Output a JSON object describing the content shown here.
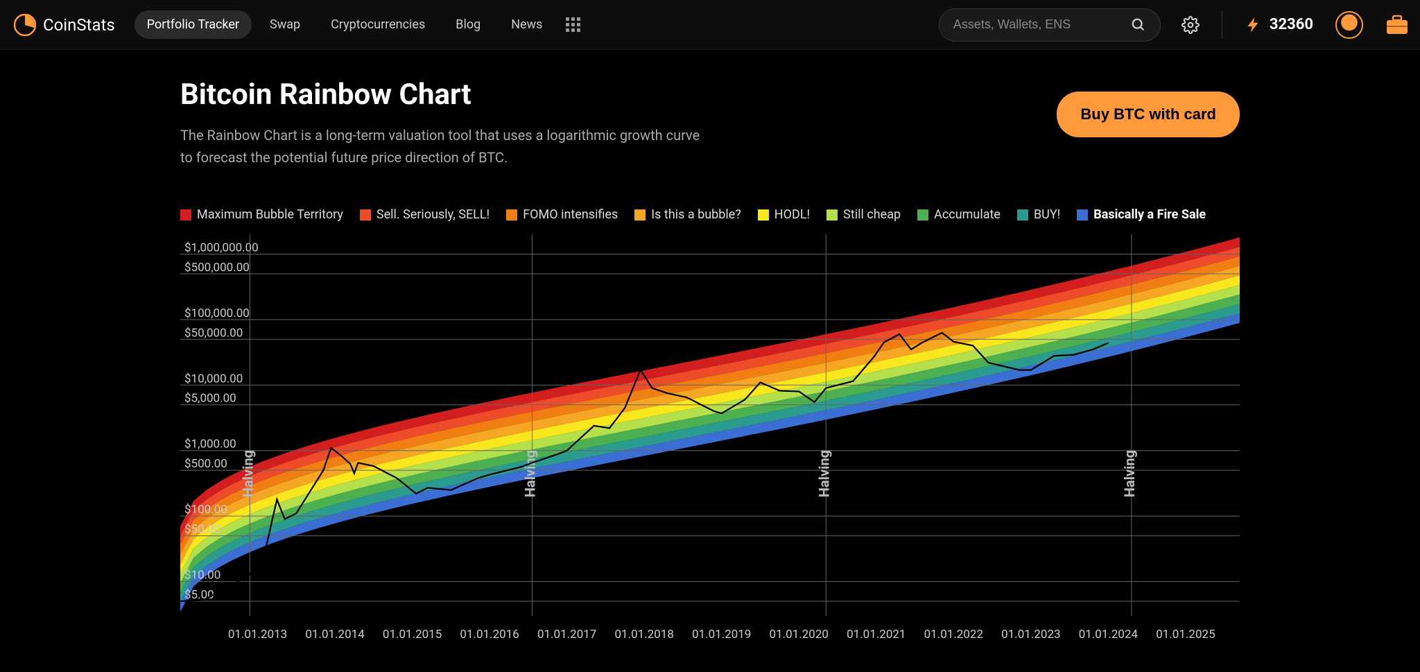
{
  "header": {
    "brand": "CoinStats",
    "nav": [
      "Portfolio Tracker",
      "Swap",
      "Cryptocurrencies",
      "Blog",
      "News"
    ],
    "active_nav_index": 0,
    "search_placeholder": "Assets, Wallets, ENS",
    "points": "32360"
  },
  "page": {
    "title": "Bitcoin Rainbow Chart",
    "subtitle": "The Rainbow Chart is a long-term valuation tool that uses a logarithmic growth curve to forecast the potential future price direction of BTC.",
    "buy_button": "Buy BTC with card"
  },
  "chart": {
    "type": "rainbow-log-chart",
    "background_color": "#000000",
    "grid_color": "#666666",
    "text_color": "#cccccc",
    "price_line_color": "#000000",
    "legend": [
      {
        "label": "Maximum Bubble Territory",
        "color": "#d21e1e"
      },
      {
        "label": "Sell. Seriously, SELL!",
        "color": "#ee4b2b"
      },
      {
        "label": "FOMO intensifies",
        "color": "#f07e13"
      },
      {
        "label": "Is this a bubble?",
        "color": "#f5a623"
      },
      {
        "label": "HODL!",
        "color": "#f8e71c"
      },
      {
        "label": "Still cheap",
        "color": "#b4e04b"
      },
      {
        "label": "Accumulate",
        "color": "#4caf50"
      },
      {
        "label": "BUY!",
        "color": "#2b9a8f"
      },
      {
        "label": "Basically a Fire Sale",
        "color": "#3b6fd4"
      }
    ],
    "y_ticks": [
      {
        "value": 1000000,
        "label": "$1,000,000.00"
      },
      {
        "value": 500000,
        "label": "$500,000.00"
      },
      {
        "value": 100000,
        "label": "$100,000.00"
      },
      {
        "value": 50000,
        "label": "$50,000.00"
      },
      {
        "value": 10000,
        "label": "$10,000.00"
      },
      {
        "value": 5000,
        "label": "$5,000.00"
      },
      {
        "value": 1000,
        "label": "$1,000.00"
      },
      {
        "value": 500,
        "label": "$500.00"
      },
      {
        "value": 100,
        "label": "$100.00"
      },
      {
        "value": 50,
        "label": "$50.00"
      },
      {
        "value": 10,
        "label": "$10.00"
      },
      {
        "value": 5,
        "label": "$5.00"
      }
    ],
    "y_log_min": 3,
    "y_log_max": 2000000,
    "x_ticks": [
      "01.01.2013",
      "01.01.2014",
      "01.01.2015",
      "01.01.2016",
      "01.01.2017",
      "01.01.2018",
      "01.01.2019",
      "01.01.2020",
      "01.01.2021",
      "01.01.2022",
      "01.01.2023",
      "01.01.2024",
      "01.01.2025"
    ],
    "x_min_year": 2012.0,
    "x_max_year": 2025.7,
    "halvings": [
      {
        "year": 2012.9,
        "label": "Halving"
      },
      {
        "year": 2016.55,
        "label": "Halving"
      },
      {
        "year": 2020.35,
        "label": "Halving"
      },
      {
        "year": 2024.3,
        "label": "Halving"
      }
    ],
    "rainbow_top_band": {
      "start_year": 2012.0,
      "start_value": 70,
      "end_year": 2025.7,
      "end_value": 1800000,
      "curvature": 0.45
    },
    "band_thickness_log": 0.145,
    "price_series": [
      {
        "year": 2012.0,
        "price": 5
      },
      {
        "year": 2012.3,
        "price": 5.2
      },
      {
        "year": 2012.6,
        "price": 8
      },
      {
        "year": 2012.9,
        "price": 13
      },
      {
        "year": 2013.1,
        "price": 30
      },
      {
        "year": 2013.25,
        "price": 180
      },
      {
        "year": 2013.35,
        "price": 90
      },
      {
        "year": 2013.5,
        "price": 110
      },
      {
        "year": 2013.85,
        "price": 500
      },
      {
        "year": 2013.95,
        "price": 1100
      },
      {
        "year": 2014.1,
        "price": 800
      },
      {
        "year": 2014.2,
        "price": 620
      },
      {
        "year": 2014.25,
        "price": 450
      },
      {
        "year": 2014.3,
        "price": 650
      },
      {
        "year": 2014.5,
        "price": 580
      },
      {
        "year": 2014.8,
        "price": 380
      },
      {
        "year": 2015.05,
        "price": 220
      },
      {
        "year": 2015.2,
        "price": 270
      },
      {
        "year": 2015.5,
        "price": 250
      },
      {
        "year": 2015.85,
        "price": 380
      },
      {
        "year": 2016.0,
        "price": 430
      },
      {
        "year": 2016.4,
        "price": 560
      },
      {
        "year": 2016.55,
        "price": 650
      },
      {
        "year": 2016.9,
        "price": 900
      },
      {
        "year": 2017.0,
        "price": 1000
      },
      {
        "year": 2017.35,
        "price": 2400
      },
      {
        "year": 2017.55,
        "price": 2200
      },
      {
        "year": 2017.75,
        "price": 4500
      },
      {
        "year": 2017.95,
        "price": 17000
      },
      {
        "year": 2018.0,
        "price": 14000
      },
      {
        "year": 2018.1,
        "price": 9000
      },
      {
        "year": 2018.3,
        "price": 7500
      },
      {
        "year": 2018.55,
        "price": 6500
      },
      {
        "year": 2018.9,
        "price": 4000
      },
      {
        "year": 2019.0,
        "price": 3700
      },
      {
        "year": 2019.3,
        "price": 6000
      },
      {
        "year": 2019.5,
        "price": 11000
      },
      {
        "year": 2019.75,
        "price": 8200
      },
      {
        "year": 2020.0,
        "price": 8000
      },
      {
        "year": 2020.2,
        "price": 5500
      },
      {
        "year": 2020.35,
        "price": 9000
      },
      {
        "year": 2020.7,
        "price": 11500
      },
      {
        "year": 2020.97,
        "price": 27000
      },
      {
        "year": 2021.1,
        "price": 45000
      },
      {
        "year": 2021.3,
        "price": 60000
      },
      {
        "year": 2021.45,
        "price": 35000
      },
      {
        "year": 2021.6,
        "price": 45000
      },
      {
        "year": 2021.85,
        "price": 63000
      },
      {
        "year": 2022.0,
        "price": 46000
      },
      {
        "year": 2022.25,
        "price": 40000
      },
      {
        "year": 2022.45,
        "price": 22000
      },
      {
        "year": 2022.85,
        "price": 17000
      },
      {
        "year": 2023.0,
        "price": 17000
      },
      {
        "year": 2023.3,
        "price": 28000
      },
      {
        "year": 2023.55,
        "price": 29000
      },
      {
        "year": 2023.8,
        "price": 35000
      },
      {
        "year": 2024.0,
        "price": 44000
      }
    ]
  }
}
